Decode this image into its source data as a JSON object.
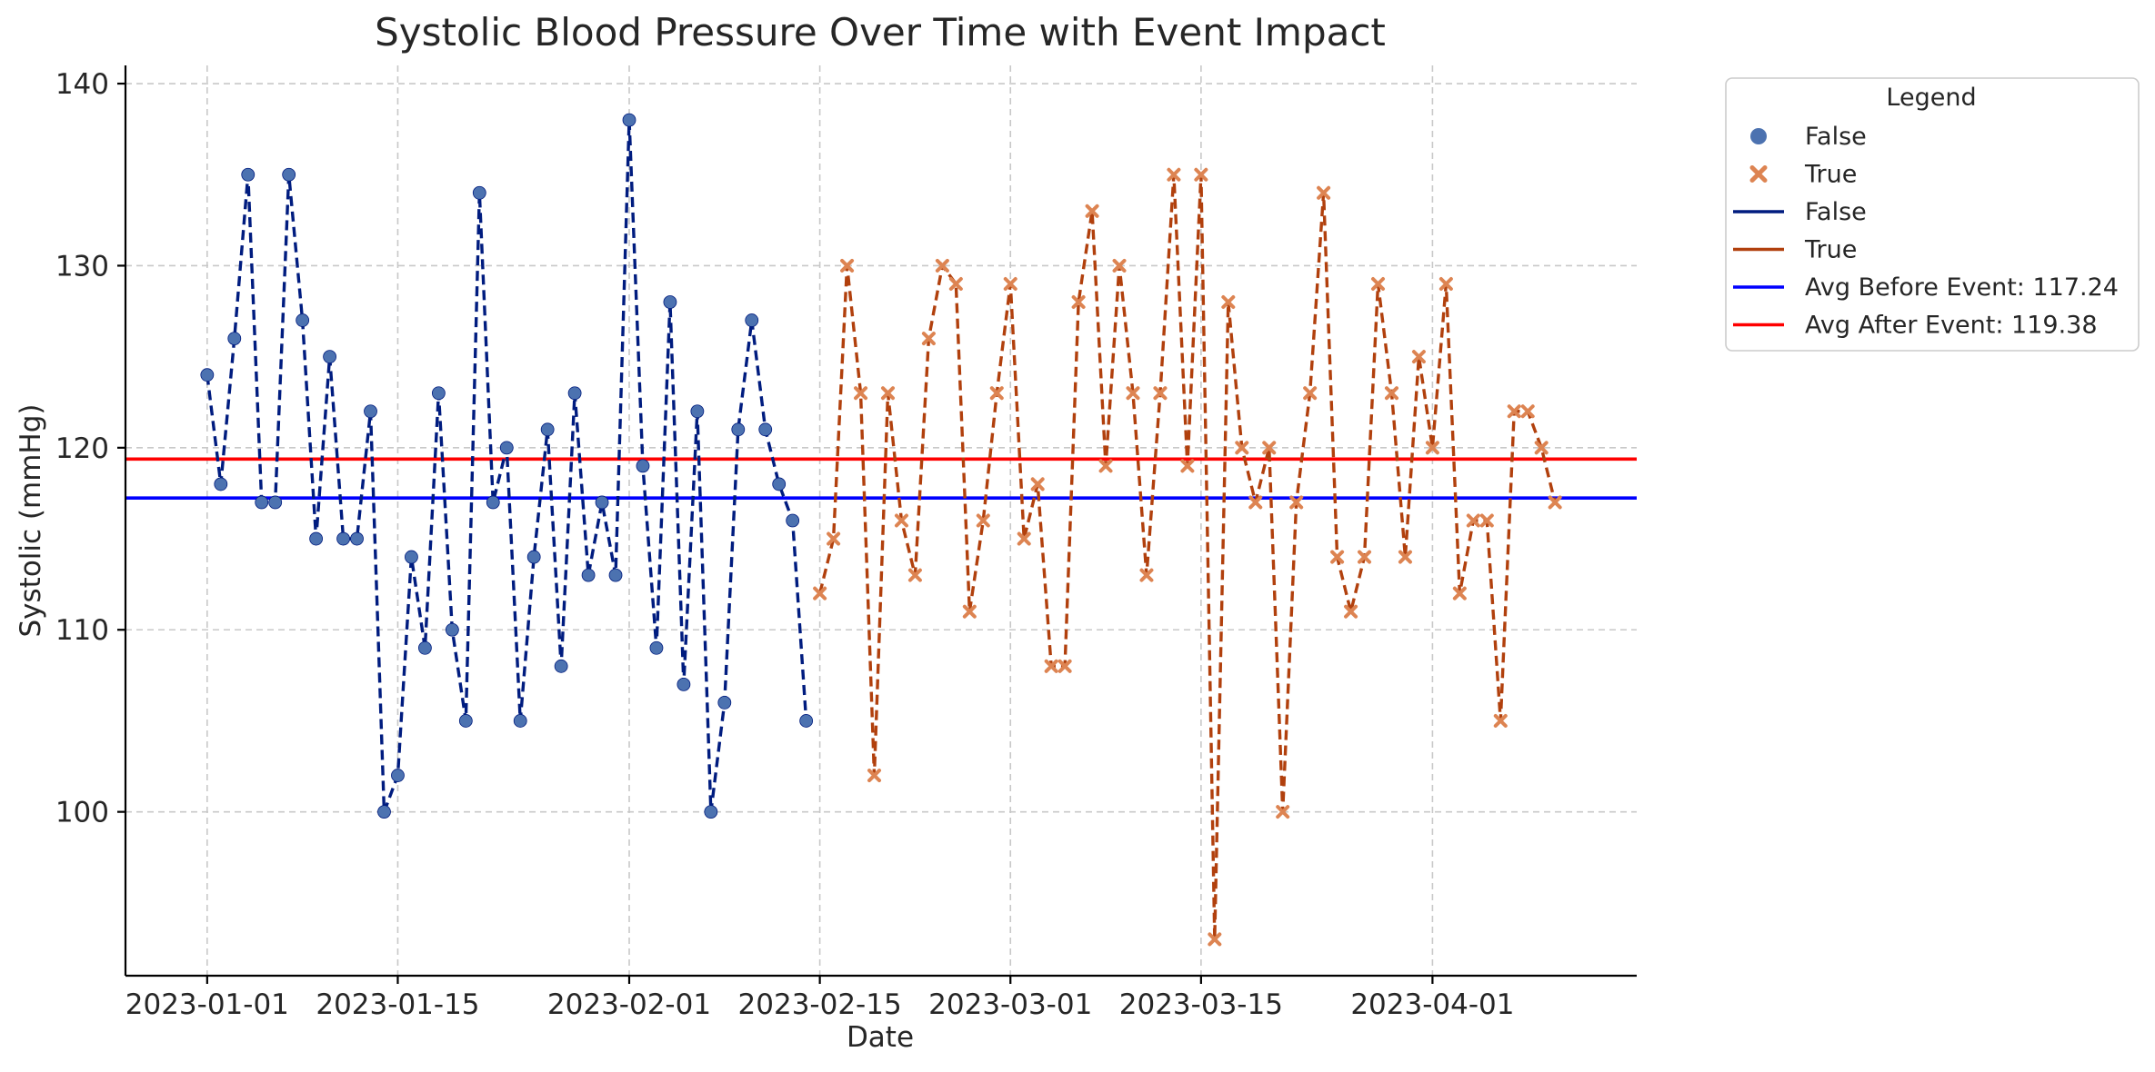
{
  "chart_data": {
    "type": "line",
    "title": "Systolic Blood Pressure Over Time with Event Impact",
    "xlabel": "Date",
    "ylabel": "Systolic (mmHg)",
    "x_start": "2023-01-01",
    "x_end": "2023-04-10",
    "xlim": [
      "2022-12-26",
      "2023-04-16"
    ],
    "ylim": [
      91,
      141
    ],
    "yticks": [
      100,
      110,
      120,
      130,
      140
    ],
    "xticks": [
      "2023-01-01",
      "2023-01-15",
      "2023-02-01",
      "2023-02-15",
      "2023-03-01",
      "2023-03-15",
      "2023-04-01"
    ],
    "grid": true,
    "legend": {
      "title": "Legend",
      "placement": "outside-top-right",
      "entries": [
        {
          "label": "False",
          "kind": "marker-circle",
          "color": "#4c72b0"
        },
        {
          "label": "True",
          "kind": "marker-x",
          "color": "#dd8452"
        },
        {
          "label": "False",
          "kind": "line",
          "color": "#001c7f"
        },
        {
          "label": "True",
          "kind": "line",
          "color": "#b1400d"
        },
        {
          "label": "Avg Before Event: 117.24",
          "kind": "line",
          "color": "#0000ff"
        },
        {
          "label": "Avg After Event: 119.38",
          "kind": "line",
          "color": "#ff0000"
        }
      ]
    },
    "series": [
      {
        "name": "False",
        "marker": "circle",
        "marker_color": "#4c72b0",
        "line_color": "#001c7f",
        "line_style": "dashed",
        "x_start": "2023-01-01",
        "values": [
          124,
          118,
          126,
          135,
          117,
          117,
          135,
          127,
          115,
          125,
          115,
          115,
          122,
          100,
          102,
          114,
          109,
          123,
          110,
          105,
          134,
          117,
          120,
          105,
          114,
          121,
          108,
          123,
          113,
          117,
          113,
          138,
          119,
          109,
          128,
          107,
          122,
          100,
          106,
          121,
          127,
          121,
          118,
          116,
          105
        ]
      },
      {
        "name": "True",
        "marker": "x",
        "marker_color": "#dd8452",
        "line_color": "#b1400d",
        "line_style": "dashed",
        "x_start": "2023-02-15",
        "values": [
          112,
          115,
          130,
          123,
          102,
          123,
          116,
          113,
          126,
          130,
          129,
          111,
          116,
          123,
          129,
          115,
          118,
          108,
          108,
          128,
          133,
          119,
          130,
          123,
          113,
          123,
          135,
          119,
          135,
          93,
          128,
          120,
          117,
          120,
          100,
          117,
          123,
          134,
          114,
          111,
          114,
          129,
          123,
          114,
          125,
          120,
          129,
          112,
          116,
          116,
          105,
          122,
          122,
          120,
          117
        ]
      }
    ],
    "reference_lines": [
      {
        "label": "Avg Before Event: 117.24",
        "value": 117.24,
        "color": "#0000ff"
      },
      {
        "label": "Avg After Event: 119.38",
        "value": 119.38,
        "color": "#ff0000"
      }
    ]
  }
}
